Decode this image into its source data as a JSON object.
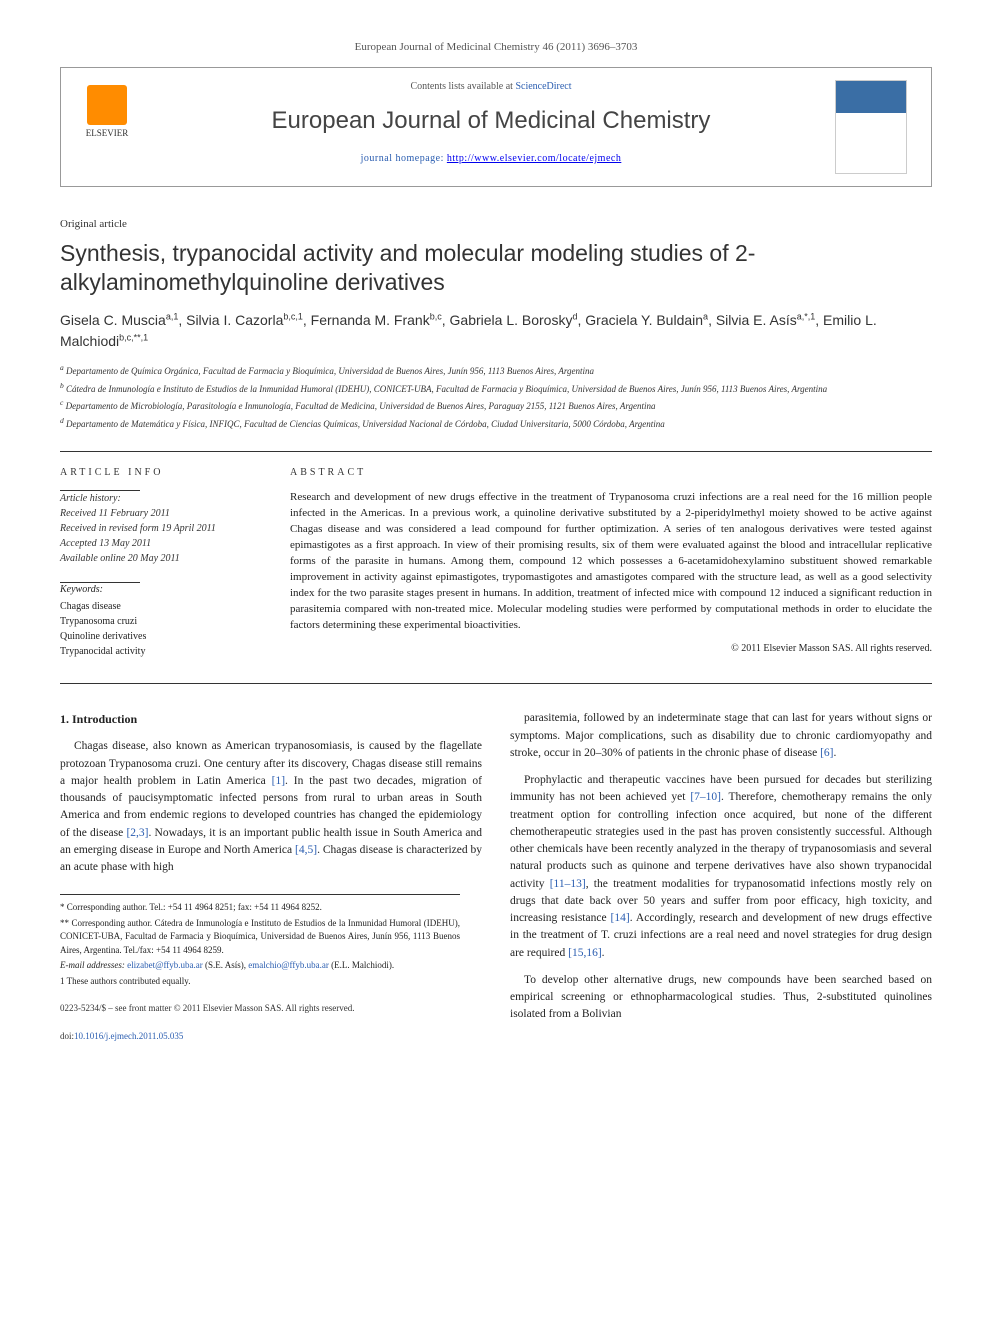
{
  "citation": "European Journal of Medicinal Chemistry 46 (2011) 3696–3703",
  "header": {
    "contents_prefix": "Contents lists available at ",
    "contents_link": "ScienceDirect",
    "journal": "European Journal of Medicinal Chemistry",
    "homepage_prefix": "journal homepage: ",
    "homepage_url": "http://www.elsevier.com/locate/ejmech",
    "logo_label": "ELSEVIER"
  },
  "article_type": "Original article",
  "title": "Synthesis, trypanocidal activity and molecular modeling studies of 2-alkylaminomethylquinoline derivatives",
  "authors_html": "Gisela C. Muscia<sup>a,1</sup>, Silvia I. Cazorla<sup>b,c,1</sup>, Fernanda M. Frank<sup>b,c</sup>, Gabriela L. Borosky<sup>d</sup>, Graciela Y. Buldain<sup>a</sup>, Silvia E. Asís<sup>a,*,1</sup>, Emilio L. Malchiodi<sup>b,c,**,1</sup>",
  "affiliations": [
    "a Departamento de Química Orgánica, Facultad de Farmacia y Bioquímica, Universidad de Buenos Aires, Junín 956, 1113 Buenos Aires, Argentina",
    "b Cátedra de Inmunología e Instituto de Estudios de la Inmunidad Humoral (IDEHU), CONICET-UBA, Facultad de Farmacia y Bioquímica, Universidad de Buenos Aires, Junín 956, 1113 Buenos Aires, Argentina",
    "c Departamento de Microbiología, Parasitología e Inmunología, Facultad de Medicina, Universidad de Buenos Aires, Paraguay 2155, 1121 Buenos Aires, Argentina",
    "d Departamento de Matemática y Física, INFIQC, Facultad de Ciencias Químicas, Universidad Nacional de Córdoba, Ciudad Universitaria, 5000 Córdoba, Argentina"
  ],
  "info_headings": {
    "left": "ARTICLE INFO",
    "right": "ABSTRACT"
  },
  "history": {
    "label": "Article history:",
    "received": "Received 11 February 2011",
    "revised": "Received in revised form 19 April 2011",
    "accepted": "Accepted 13 May 2011",
    "online": "Available online 20 May 2011"
  },
  "keywords": {
    "label": "Keywords:",
    "items": [
      "Chagas disease",
      "Trypanosoma cruzi",
      "Quinoline derivatives",
      "Trypanocidal activity"
    ]
  },
  "abstract": "Research and development of new drugs effective in the treatment of Trypanosoma cruzi infections are a real need for the 16 million people infected in the Americas. In a previous work, a quinoline derivative substituted by a 2-piperidylmethyl moiety showed to be active against Chagas disease and was considered a lead compound for further optimization. A series of ten analogous derivatives were tested against epimastigotes as a first approach. In view of their promising results, six of them were evaluated against the blood and intracellular replicative forms of the parasite in humans. Among them, compound 12 which possesses a 6-acetamidohexylamino substituent showed remarkable improvement in activity against epimastigotes, trypomastigotes and amastigotes compared with the structure lead, as well as a good selectivity index for the two parasite stages present in humans. In addition, treatment of infected mice with compound 12 induced a significant reduction in parasitemia compared with non-treated mice. Molecular modeling studies were performed by computational methods in order to elucidate the factors determining these experimental bioactivities.",
  "copyright": "© 2011 Elsevier Masson SAS. All rights reserved.",
  "intro_heading": "1. Introduction",
  "body": {
    "left": [
      "Chagas disease, also known as American trypanosomiasis, is caused by the flagellate protozoan Trypanosoma cruzi. One century after its discovery, Chagas disease still remains a major health problem in Latin America [1]. In the past two decades, migration of thousands of paucisymptomatic infected persons from rural to urban areas in South America and from endemic regions to developed countries has changed the epidemiology of the disease [2,3]. Nowadays, it is an important public health issue in South America and an emerging disease in Europe and North America [4,5]. Chagas disease is characterized by an acute phase with high"
    ],
    "right": [
      "parasitemia, followed by an indeterminate stage that can last for years without signs or symptoms. Major complications, such as disability due to chronic cardiomyopathy and stroke, occur in 20–30% of patients in the chronic phase of disease [6].",
      "Prophylactic and therapeutic vaccines have been pursued for decades but sterilizing immunity has not been achieved yet [7–10]. Therefore, chemotherapy remains the only treatment option for controlling infection once acquired, but none of the different chemotherapeutic strategies used in the past has proven consistently successful. Although other chemicals have been recently analyzed in the therapy of trypanosomiasis and several natural products such as quinone and terpene derivatives have also shown trypanocidal activity [11–13], the treatment modalities for trypanosomatid infections mostly rely on drugs that date back over 50 years and suffer from poor efficacy, high toxicity, and increasing resistance [14]. Accordingly, research and development of new drugs effective in the treatment of T. cruzi infections are a real need and novel strategies for drug design are required [15,16].",
      "To develop other alternative drugs, new compounds have been searched based on empirical screening or ethnopharmacological studies. Thus, 2-substituted quinolines isolated from a Bolivian"
    ]
  },
  "footnotes": {
    "corr1": "* Corresponding author. Tel.: +54 11 4964 8251; fax: +54 11 4964 8252.",
    "corr2": "** Corresponding author. Cátedra de Inmunología e Instituto de Estudios de la Inmunidad Humoral (IDEHU), CONICET-UBA, Facultad de Farmacia y Bioquímica, Universidad de Buenos Aires, Junín 956, 1113 Buenos Aires, Argentina. Tel./fax: +54 11 4964 8259.",
    "emails_label": "E-mail addresses: ",
    "email1": "elizabet@ffyb.uba.ar",
    "email1_name": " (S.E. Asís), ",
    "email2": "emalchio@ffyb.uba.ar",
    "email2_name": " (E.L. Malchiodi).",
    "equal": "1 These authors contributed equally."
  },
  "footer": {
    "issn": "0223-5234/$ – see front matter © 2011 Elsevier Masson SAS. All rights reserved.",
    "doi_label": "doi:",
    "doi": "10.1016/j.ejmech.2011.05.035"
  },
  "colors": {
    "link": "#2a5db0",
    "text": "#222222",
    "rule": "#333333",
    "logo": "#ff8c00"
  }
}
